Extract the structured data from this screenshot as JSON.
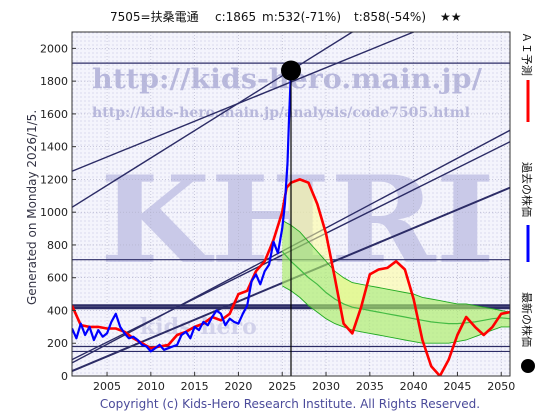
{
  "header": {
    "code_name": "7505=扶桑電通",
    "current": "c:1865",
    "min": "m:532(-71%)",
    "target": "t:858(-54%)",
    "stars": "★★"
  },
  "side_note": "Generated on Monday 2026/1/5.",
  "watermarks": {
    "big": "KHRI",
    "url_main": "http://kids-hero.main.jp/",
    "url_sub": "http://kids-hero.main.jp/analysis/code7505.html",
    "faint": "kids-hero"
  },
  "copyright": "Copyright (c) Kids-Hero Research Institute. All Rights Reserved.",
  "legend": [
    {
      "label": "ＡＩ予測",
      "color": "#ff0000",
      "marker": "line"
    },
    {
      "label": "過去の株価",
      "color": "#0000ff",
      "marker": "line"
    },
    {
      "label": "最新の株価",
      "color": "#000000",
      "marker": "dot"
    }
  ],
  "chart_data": {
    "type": "line",
    "title": "7505=扶桑電通　c:1865 m:532(-71%) t:858(-54%) ★★",
    "xlabel": "",
    "ylabel": "",
    "xlim": [
      2001,
      2051
    ],
    "ylim": [
      0,
      2100
    ],
    "x_ticks": [
      2005,
      2010,
      2015,
      2020,
      2025,
      2030,
      2035,
      2040,
      2045,
      2050
    ],
    "y_ticks": [
      0,
      200,
      400,
      600,
      800,
      1000,
      1200,
      1400,
      1600,
      1800,
      2000
    ],
    "grid": true,
    "latest": {
      "x": 2026.0,
      "y": 1865
    },
    "horizontal_levels": [
      1910,
      710,
      430,
      415,
      180,
      150
    ],
    "trend_channels": [
      {
        "x1": 2001,
        "y1": 80,
        "x2": 2051,
        "y2": 1500
      },
      {
        "x1": 2001,
        "y1": 30,
        "x2": 2051,
        "y2": 1150
      },
      {
        "x1": 2001,
        "y1": 1250,
        "x2": 2040,
        "y2": 2100
      },
      {
        "x1": 2001,
        "y1": 1030,
        "x2": 2033,
        "y2": 2100
      },
      {
        "x1": 2001,
        "y1": 100,
        "x2": 2051,
        "y2": 1430
      }
    ],
    "series": [
      {
        "name": "過去の株価",
        "color": "#0000ff",
        "points": [
          [
            2001.0,
            290
          ],
          [
            2001.5,
            230
          ],
          [
            2002.0,
            320
          ],
          [
            2002.5,
            250
          ],
          [
            2003.0,
            300
          ],
          [
            2003.5,
            220
          ],
          [
            2004.0,
            280
          ],
          [
            2004.5,
            240
          ],
          [
            2005.0,
            260
          ],
          [
            2005.5,
            330
          ],
          [
            2006.0,
            380
          ],
          [
            2006.5,
            300
          ],
          [
            2007.0,
            260
          ],
          [
            2007.5,
            230
          ],
          [
            2008.0,
            240
          ],
          [
            2008.5,
            220
          ],
          [
            2009.0,
            190
          ],
          [
            2009.5,
            180
          ],
          [
            2010.0,
            150
          ],
          [
            2010.5,
            170
          ],
          [
            2011.0,
            190
          ],
          [
            2011.5,
            160
          ],
          [
            2012.0,
            170
          ],
          [
            2012.5,
            180
          ],
          [
            2013.0,
            190
          ],
          [
            2013.5,
            250
          ],
          [
            2014.0,
            270
          ],
          [
            2014.5,
            230
          ],
          [
            2015.0,
            300
          ],
          [
            2015.5,
            280
          ],
          [
            2016.0,
            330
          ],
          [
            2016.5,
            310
          ],
          [
            2017.0,
            360
          ],
          [
            2017.5,
            400
          ],
          [
            2018.0,
            380
          ],
          [
            2018.5,
            310
          ],
          [
            2019.0,
            350
          ],
          [
            2019.5,
            330
          ],
          [
            2020.0,
            320
          ],
          [
            2020.5,
            380
          ],
          [
            2021.0,
            430
          ],
          [
            2021.5,
            580
          ],
          [
            2022.0,
            620
          ],
          [
            2022.5,
            560
          ],
          [
            2023.0,
            640
          ],
          [
            2023.5,
            680
          ],
          [
            2024.0,
            820
          ],
          [
            2024.5,
            750
          ],
          [
            2025.0,
            900
          ],
          [
            2025.3,
            1050
          ],
          [
            2025.6,
            1300
          ],
          [
            2025.8,
            1600
          ],
          [
            2026.0,
            1865
          ]
        ]
      },
      {
        "name": "ＡＩ予測",
        "color": "#ff0000",
        "points": [
          [
            2001.0,
            430
          ],
          [
            2002.0,
            310
          ],
          [
            2003.0,
            300
          ],
          [
            2004.0,
            300
          ],
          [
            2005.0,
            290
          ],
          [
            2006.0,
            290
          ],
          [
            2007.0,
            270
          ],
          [
            2008.0,
            230
          ],
          [
            2009.0,
            200
          ],
          [
            2010.0,
            170
          ],
          [
            2011.0,
            180
          ],
          [
            2012.0,
            190
          ],
          [
            2013.0,
            250
          ],
          [
            2014.0,
            270
          ],
          [
            2015.0,
            300
          ],
          [
            2016.0,
            320
          ],
          [
            2017.0,
            360
          ],
          [
            2018.0,
            340
          ],
          [
            2019.0,
            380
          ],
          [
            2020.0,
            500
          ],
          [
            2021.0,
            520
          ],
          [
            2022.0,
            640
          ],
          [
            2023.0,
            700
          ],
          [
            2024.0,
            830
          ],
          [
            2025.0,
            1000
          ],
          [
            2025.5,
            1150
          ],
          [
            2026.0,
            1180
          ],
          [
            2027.0,
            1200
          ],
          [
            2028.0,
            1180
          ],
          [
            2029.0,
            1050
          ],
          [
            2030.0,
            870
          ],
          [
            2031.0,
            600
          ],
          [
            2032.0,
            320
          ],
          [
            2033.0,
            260
          ],
          [
            2034.0,
            420
          ],
          [
            2035.0,
            620
          ],
          [
            2036.0,
            650
          ],
          [
            2037.0,
            660
          ],
          [
            2038.0,
            700
          ],
          [
            2039.0,
            650
          ],
          [
            2040.0,
            470
          ],
          [
            2041.0,
            220
          ],
          [
            2042.0,
            60
          ],
          [
            2043.0,
            0
          ],
          [
            2044.0,
            100
          ],
          [
            2045.0,
            250
          ],
          [
            2046.0,
            360
          ],
          [
            2047.0,
            300
          ],
          [
            2048.0,
            250
          ],
          [
            2049.0,
            300
          ],
          [
            2050.0,
            380
          ],
          [
            2051.0,
            390
          ]
        ]
      },
      {
        "name": "予測範囲上限",
        "color": "#22aa22",
        "points": [
          [
            2025.0,
            950
          ],
          [
            2026.0,
            920
          ],
          [
            2027.0,
            880
          ],
          [
            2028.0,
            820
          ],
          [
            2029.0,
            760
          ],
          [
            2030.0,
            700
          ],
          [
            2031.0,
            640
          ],
          [
            2032.0,
            600
          ],
          [
            2033.0,
            570
          ],
          [
            2034.0,
            560
          ],
          [
            2035.0,
            550
          ],
          [
            2036.0,
            540
          ],
          [
            2037.0,
            530
          ],
          [
            2038.0,
            520
          ],
          [
            2039.0,
            510
          ],
          [
            2040.0,
            500
          ],
          [
            2041.0,
            480
          ],
          [
            2042.0,
            470
          ],
          [
            2043.0,
            460
          ],
          [
            2044.0,
            450
          ],
          [
            2045.0,
            440
          ],
          [
            2046.0,
            440
          ],
          [
            2047.0,
            430
          ],
          [
            2048.0,
            420
          ],
          [
            2049.0,
            410
          ],
          [
            2050.0,
            400
          ],
          [
            2051.0,
            390
          ]
        ]
      },
      {
        "name": "予測範囲下限",
        "color": "#22aa22",
        "points": [
          [
            2025.0,
            550
          ],
          [
            2026.0,
            520
          ],
          [
            2027.0,
            480
          ],
          [
            2028.0,
            430
          ],
          [
            2029.0,
            390
          ],
          [
            2030.0,
            350
          ],
          [
            2031.0,
            320
          ],
          [
            2032.0,
            300
          ],
          [
            2033.0,
            280
          ],
          [
            2034.0,
            270
          ],
          [
            2035.0,
            260
          ],
          [
            2036.0,
            250
          ],
          [
            2037.0,
            240
          ],
          [
            2038.0,
            230
          ],
          [
            2039.0,
            220
          ],
          [
            2040.0,
            210
          ],
          [
            2041.0,
            200
          ],
          [
            2042.0,
            200
          ],
          [
            2043.0,
            200
          ],
          [
            2044.0,
            200
          ],
          [
            2045.0,
            210
          ],
          [
            2046.0,
            220
          ],
          [
            2047.0,
            240
          ],
          [
            2048.0,
            260
          ],
          [
            2049.0,
            280
          ],
          [
            2050.0,
            300
          ],
          [
            2051.0,
            300
          ]
        ]
      },
      {
        "name": "予測中央",
        "color": "#44bb44",
        "points": [
          [
            2025.0,
            760
          ],
          [
            2026.0,
            700
          ],
          [
            2027.0,
            650
          ],
          [
            2028.0,
            600
          ],
          [
            2029.0,
            560
          ],
          [
            2030.0,
            510
          ],
          [
            2031.0,
            470
          ],
          [
            2032.0,
            440
          ],
          [
            2033.0,
            420
          ],
          [
            2034.0,
            410
          ],
          [
            2035.0,
            400
          ],
          [
            2036.0,
            390
          ],
          [
            2037.0,
            380
          ],
          [
            2038.0,
            370
          ],
          [
            2039.0,
            360
          ],
          [
            2040.0,
            350
          ],
          [
            2041.0,
            340
          ],
          [
            2042.0,
            330
          ],
          [
            2043.0,
            325
          ],
          [
            2044.0,
            320
          ],
          [
            2045.0,
            320
          ],
          [
            2046.0,
            325
          ],
          [
            2047.0,
            330
          ],
          [
            2048.0,
            340
          ],
          [
            2049.0,
            350
          ],
          [
            2050.0,
            355
          ],
          [
            2051.0,
            350
          ]
        ]
      }
    ]
  }
}
